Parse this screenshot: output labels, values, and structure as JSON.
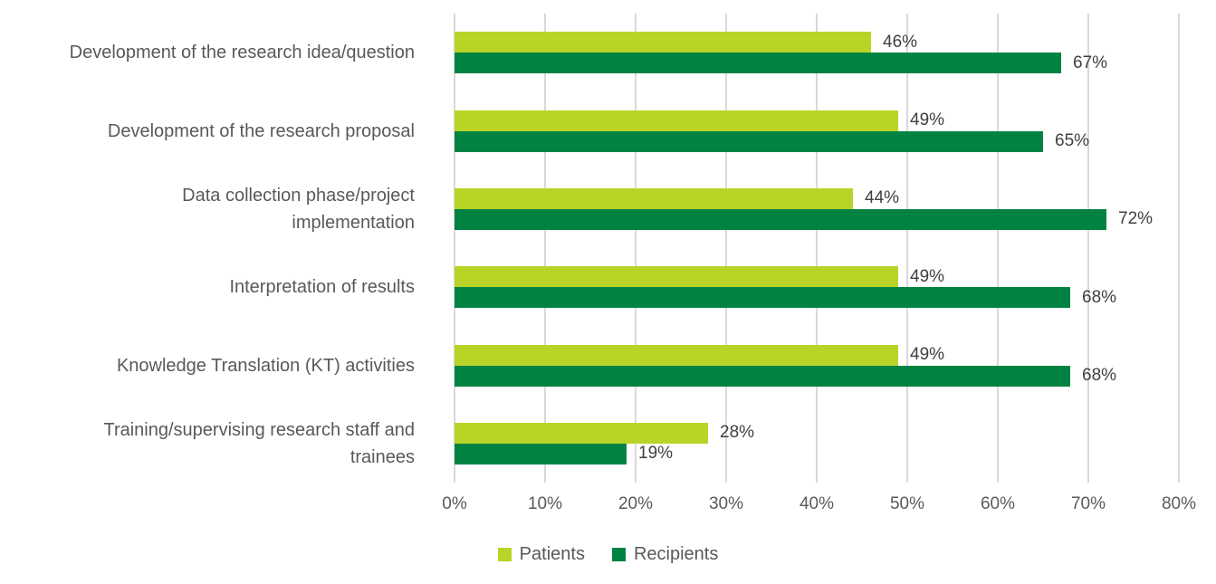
{
  "chart_data": {
    "type": "bar",
    "orientation": "horizontal",
    "title": "",
    "xlabel": "",
    "ylabel": "",
    "xlim": [
      0,
      80
    ],
    "grid": "vertical",
    "gridline_color": "#d9d9d9",
    "value_suffix": "%",
    "legend_position": "bottom-center",
    "category_label_color": "#595959",
    "value_label_color": "#404040",
    "categories": [
      "Development of the research idea/question",
      "Development of the research proposal",
      "Data collection phase/project\nimplementation",
      "Interpretation of results",
      "Knowledge Translation (KT) activities",
      "Training/supervising research staff and\ntrainees"
    ],
    "series": [
      {
        "name": "Patients",
        "color": "#b9d327",
        "values": [
          46,
          49,
          44,
          49,
          49,
          28
        ]
      },
      {
        "name": "Recipients",
        "color": "#008342",
        "values": [
          67,
          65,
          72,
          68,
          68,
          19
        ]
      }
    ],
    "x_ticks": [
      "0%",
      "10%",
      "20%",
      "30%",
      "40%",
      "50%",
      "60%",
      "70%",
      "80%"
    ]
  }
}
